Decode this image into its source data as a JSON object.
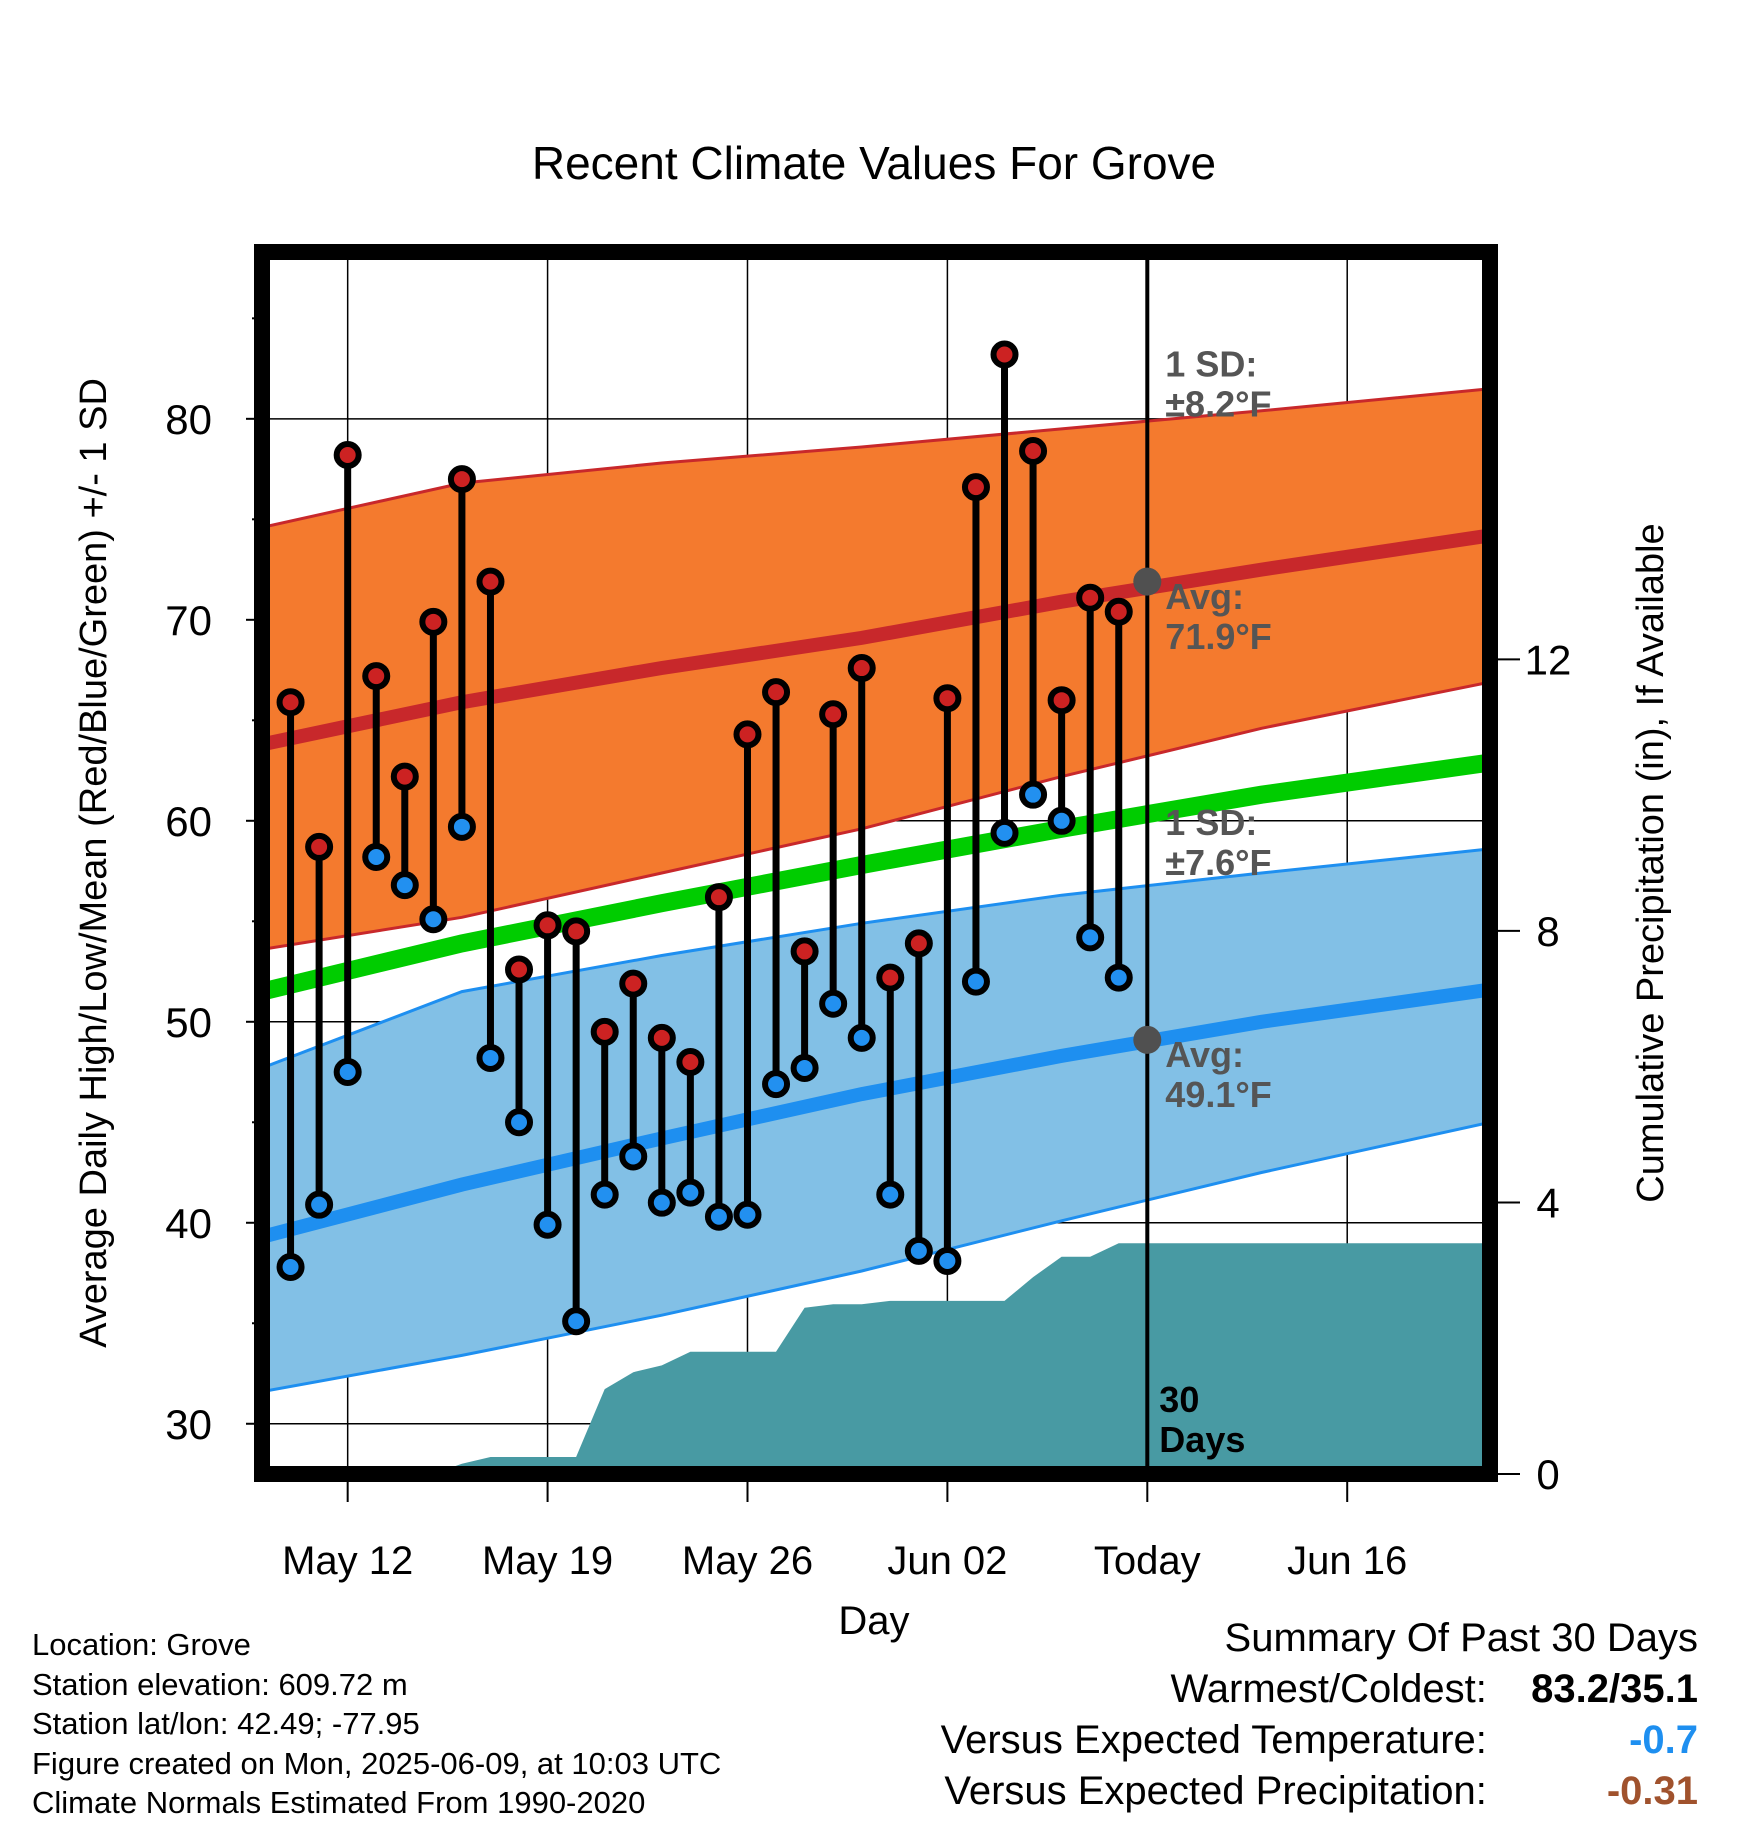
{
  "chart_data": {
    "type": "line",
    "title": "Recent Climate Values For Grove",
    "xlabel": "Day",
    "ylabel": "Average Daily High/Low/Mean (Red/Blue/Green) +/- 1 SD",
    "y2label": "Cumulative Precipitation (in), If Available",
    "ylim": [
      27.5,
      88.3
    ],
    "y2lim": [
      0,
      18
    ],
    "xlim": [
      "2025-05-09",
      "2025-06-21"
    ],
    "yticks": [
      30,
      40,
      50,
      60,
      70,
      80
    ],
    "y2ticks": [
      0,
      4,
      8,
      12
    ],
    "xticks": [
      {
        "date": "2025-05-12",
        "label": "May 12"
      },
      {
        "date": "2025-05-19",
        "label": "May 19"
      },
      {
        "date": "2025-05-26",
        "label": "May 26"
      },
      {
        "date": "2025-06-02",
        "label": "Jun 02"
      },
      {
        "date": "2025-06-09",
        "label": "Today"
      },
      {
        "date": "2025-06-16",
        "label": "Jun 16"
      }
    ],
    "today": "2025-06-09",
    "period_label": [
      "30",
      "Days"
    ],
    "observed": [
      {
        "date": "2025-05-10",
        "high": 65.9,
        "low": 37.8
      },
      {
        "date": "2025-05-11",
        "high": 58.7,
        "low": 40.9
      },
      {
        "date": "2025-05-12",
        "high": 78.2,
        "low": 47.5
      },
      {
        "date": "2025-05-13",
        "high": 67.2,
        "low": 58.2
      },
      {
        "date": "2025-05-14",
        "high": 62.2,
        "low": 56.8
      },
      {
        "date": "2025-05-15",
        "high": 69.9,
        "low": 55.1
      },
      {
        "date": "2025-05-16",
        "high": 77.0,
        "low": 59.7
      },
      {
        "date": "2025-05-17",
        "high": 71.9,
        "low": 48.2
      },
      {
        "date": "2025-05-18",
        "high": 52.6,
        "low": 45.0
      },
      {
        "date": "2025-05-19",
        "high": 54.8,
        "low": 39.9
      },
      {
        "date": "2025-05-20",
        "high": 54.5,
        "low": 35.1
      },
      {
        "date": "2025-05-21",
        "high": 49.5,
        "low": 41.4
      },
      {
        "date": "2025-05-22",
        "high": 51.9,
        "low": 43.3
      },
      {
        "date": "2025-05-23",
        "high": 49.2,
        "low": 41.0
      },
      {
        "date": "2025-05-24",
        "high": 48.0,
        "low": 41.5
      },
      {
        "date": "2025-05-25",
        "high": 56.2,
        "low": 40.3
      },
      {
        "date": "2025-05-26",
        "high": 64.3,
        "low": 40.4
      },
      {
        "date": "2025-05-27",
        "high": 66.4,
        "low": 46.9
      },
      {
        "date": "2025-05-28",
        "high": 53.5,
        "low": 47.7
      },
      {
        "date": "2025-05-29",
        "high": 65.3,
        "low": 50.9
      },
      {
        "date": "2025-05-30",
        "high": 67.6,
        "low": 49.2
      },
      {
        "date": "2025-05-31",
        "high": 52.2,
        "low": 41.4
      },
      {
        "date": "2025-06-01",
        "high": 53.9,
        "low": 38.6
      },
      {
        "date": "2025-06-02",
        "high": 66.1,
        "low": 38.1
      },
      {
        "date": "2025-06-03",
        "high": 76.6,
        "low": 52.0
      },
      {
        "date": "2025-06-04",
        "high": 83.2,
        "low": 59.4
      },
      {
        "date": "2025-06-05",
        "high": 78.4,
        "low": 61.3
      },
      {
        "date": "2025-06-06",
        "high": 66.0,
        "low": 60.0
      },
      {
        "date": "2025-06-07",
        "high": 71.1,
        "low": 54.2
      },
      {
        "date": "2025-06-08",
        "high": 70.4,
        "low": 52.2
      }
    ],
    "normals": {
      "dates": [
        "2025-05-09",
        "2025-05-16",
        "2025-05-23",
        "2025-05-30",
        "2025-06-06",
        "2025-06-13",
        "2025-06-21"
      ],
      "high_mean": [
        63.8,
        65.9,
        67.6,
        69.1,
        70.9,
        72.5,
        74.2
      ],
      "high_upper": [
        74.6,
        76.8,
        77.8,
        78.6,
        79.5,
        80.4,
        81.5
      ],
      "high_lower": [
        53.6,
        55.2,
        57.4,
        59.6,
        62.2,
        64.6,
        66.9
      ],
      "low_mean": [
        39.3,
        41.9,
        44.2,
        46.4,
        48.3,
        50.0,
        51.6
      ],
      "low_upper": [
        47.7,
        51.5,
        53.3,
        54.9,
        56.3,
        57.4,
        58.6
      ],
      "low_lower": [
        31.6,
        33.4,
        35.4,
        37.6,
        40.1,
        42.5,
        45.0
      ],
      "mean": [
        51.5,
        53.9,
        55.9,
        57.8,
        59.6,
        61.3,
        62.9
      ]
    },
    "precipitation": {
      "dates": [
        "2025-05-09",
        "2025-05-15",
        "2025-05-16",
        "2025-05-17",
        "2025-05-20",
        "2025-05-21",
        "2025-05-22",
        "2025-05-23",
        "2025-05-24",
        "2025-05-26",
        "2025-05-27",
        "2025-05-28",
        "2025-05-29",
        "2025-05-30",
        "2025-05-31",
        "2025-06-01",
        "2025-06-02",
        "2025-06-03",
        "2025-06-04",
        "2025-06-05",
        "2025-06-06",
        "2025-06-07",
        "2025-06-08",
        "2025-06-21"
      ],
      "values": [
        0.0,
        0.0,
        0.15,
        0.25,
        0.25,
        1.25,
        1.5,
        1.6,
        1.8,
        1.8,
        1.8,
        2.45,
        2.5,
        2.5,
        2.55,
        2.55,
        2.55,
        2.55,
        2.55,
        2.9,
        3.2,
        3.2,
        3.4,
        3.4
      ]
    },
    "annotations": {
      "high_sd": [
        "1 SD:",
        "±8.2°F"
      ],
      "high_avg": [
        "Avg:",
        "71.9°F"
      ],
      "low_sd": [
        "1 SD:",
        "±7.6°F"
      ],
      "low_avg": [
        "Avg:",
        "49.1°F"
      ],
      "today_high_avg": 71.9,
      "today_low_avg": 49.1
    },
    "colors": {
      "high_band": "#f47a2e",
      "high_line": "#c8282b",
      "low_band": "#82c0e6",
      "low_line": "#1e8ff0",
      "mean_line": "#00cc00",
      "precip": "#489aa3",
      "high_dot": "#cc2222",
      "low_dot": "#2290f0",
      "annotation": "#555555"
    }
  },
  "info": {
    "location": "Location: Grove",
    "elevation": "Station elevation: 609.72 m",
    "latlon": "Station lat/lon: 42.49; -77.95",
    "created": "Figure created on Mon, 2025-06-09, at 10:03 UTC",
    "normals": "Climate Normals Estimated From 1990-2020"
  },
  "summary": {
    "heading": "Summary Of Past 30 Days",
    "warmest_label": "Warmest/Coldest:",
    "warmest_value": "83.2/35.1",
    "temp_label": "Versus Expected Temperature:",
    "temp_value": "-0.7",
    "precip_label": "Versus Expected Precipitation:",
    "precip_value": "-0.31",
    "temp_color": "#1e8ff0",
    "precip_color": "#a0522d"
  }
}
